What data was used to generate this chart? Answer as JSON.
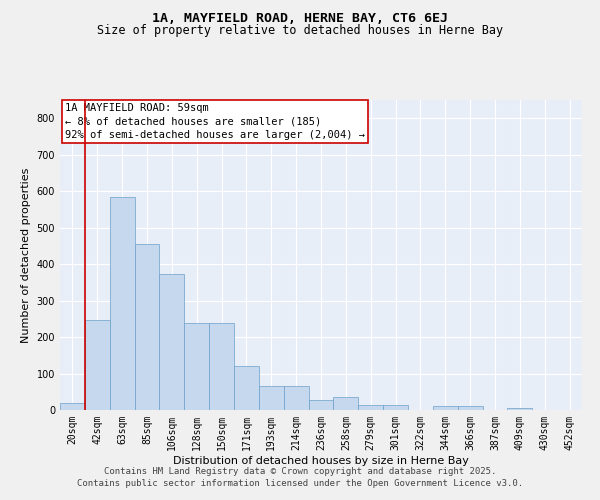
{
  "title_line1": "1A, MAYFIELD ROAD, HERNE BAY, CT6 6EJ",
  "title_line2": "Size of property relative to detached houses in Herne Bay",
  "xlabel": "Distribution of detached houses by size in Herne Bay",
  "ylabel": "Number of detached properties",
  "categories": [
    "20sqm",
    "42sqm",
    "63sqm",
    "85sqm",
    "106sqm",
    "128sqm",
    "150sqm",
    "171sqm",
    "193sqm",
    "214sqm",
    "236sqm",
    "258sqm",
    "279sqm",
    "301sqm",
    "322sqm",
    "344sqm",
    "366sqm",
    "387sqm",
    "409sqm",
    "430sqm",
    "452sqm"
  ],
  "values": [
    18,
    248,
    585,
    455,
    373,
    238,
    238,
    120,
    65,
    65,
    27,
    37,
    13,
    13,
    0,
    10,
    10,
    0,
    5,
    0,
    0
  ],
  "bar_color": "#c5d8ee",
  "bar_edge_color": "#6a9fcb",
  "bg_color": "#e8eef8",
  "grid_color": "#ffffff",
  "fig_bg_color": "#f0f0f0",
  "vline_color": "#cc0000",
  "vline_x_index": 1,
  "annotation_text": "1A MAYFIELD ROAD: 59sqm\n← 8% of detached houses are smaller (185)\n92% of semi-detached houses are larger (2,004) →",
  "annotation_box_color": "#ffffff",
  "annotation_box_edge": "#cc0000",
  "footer_line1": "Contains HM Land Registry data © Crown copyright and database right 2025.",
  "footer_line2": "Contains public sector information licensed under the Open Government Licence v3.0.",
  "ylim": [
    0,
    850
  ],
  "yticks": [
    0,
    100,
    200,
    300,
    400,
    500,
    600,
    700,
    800
  ],
  "title_fontsize": 9.5,
  "subtitle_fontsize": 8.5,
  "ylabel_fontsize": 8,
  "xlabel_fontsize": 8,
  "tick_fontsize": 7,
  "footer_fontsize": 6.5,
  "annotation_fontsize": 7.5
}
